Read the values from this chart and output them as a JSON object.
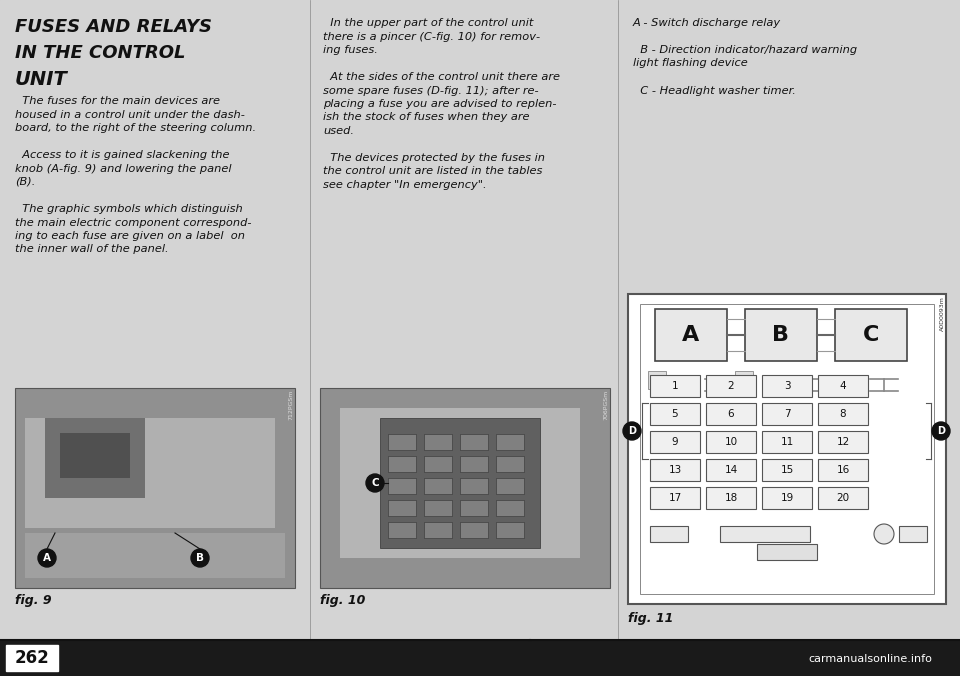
{
  "bg_color": "#1c1c1c",
  "content_bg": "#e8e8e8",
  "title_lines": [
    "FUSES AND RELAYS",
    "IN THE CONTROL",
    "UNIT"
  ],
  "title_fontsize": 13,
  "title_color": "#111111",
  "body1_lines": [
    "  The fuses for the main devices are",
    "housed in a control unit under the dash-",
    "board, to the right of the steering column.",
    "",
    "  Access to it is gained slackening the",
    "knob (A-fig. 9) and lowering the panel",
    "(B).",
    "",
    "  The graphic symbols which distinguish",
    "the main electric component correspond-",
    "ing to each fuse are given on a label  on",
    "the inner wall of the panel."
  ],
  "body2_lines": [
    "  In the upper part of the control unit",
    "there is a pincer (C-fig. 10) for remov-",
    "ing fuses.",
    "",
    "  At the sides of the control unit there are",
    "some spare fuses (D-fig. 11); after re-",
    "placing a fuse you are advised to replen-",
    "ish the stock of fuses when they are",
    "used.",
    "",
    "  The devices protected by the fuses in",
    "the control unit are listed in the tables",
    "see chapter \"In emergency\"."
  ],
  "body3_lines": [
    "A - Switch discharge relay",
    "",
    "  B - Direction indicator/hazard warning",
    "light flashing device",
    "",
    "  C - Headlight washer timer."
  ],
  "body_fontsize": 8.2,
  "body_color": "#111111",
  "fig9_label": "fig. 9",
  "fig10_label": "fig. 10",
  "fig11_label": "fig. 11",
  "fig9_code": "712PGSm",
  "fig10_code": "706PGSm",
  "diagram_code_id": "A0D0093m",
  "page_num": "262",
  "watermark": "carmanualsonline.info",
  "col_divider_color": "#888888",
  "bottom_bar_color": "#111111",
  "page_num_box_color": "#ffffff",
  "fuse_rows": [
    [
      "1",
      "2",
      "3",
      "4"
    ],
    [
      "5",
      "6",
      "7",
      "8"
    ],
    [
      "9",
      "10",
      "11",
      "12"
    ],
    [
      "13",
      "14",
      "15",
      "16"
    ],
    [
      "17",
      "18",
      "19",
      "20"
    ]
  ],
  "relay_labels": [
    "A",
    "B",
    "C"
  ]
}
